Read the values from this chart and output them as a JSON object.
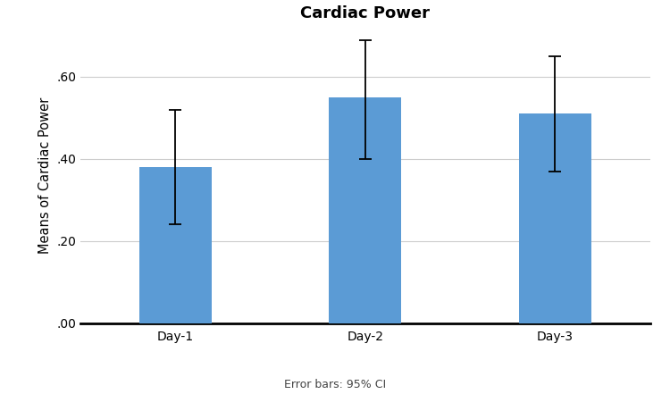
{
  "title": "Cardiac Power",
  "ylabel": "Means of Cardiac Power",
  "xlabel": "",
  "categories": [
    "Day-1",
    "Day-2",
    "Day-3"
  ],
  "values": [
    0.38,
    0.55,
    0.51
  ],
  "ci_lower": [
    0.24,
    0.4,
    0.37
  ],
  "ci_upper": [
    0.52,
    0.69,
    0.65
  ],
  "bar_color": "#5B9BD5",
  "bar_edgecolor": "none",
  "ylim": [
    0.0,
    0.72
  ],
  "yticks": [
    0.0,
    0.2,
    0.4,
    0.6
  ],
  "ytick_labels": [
    ".00",
    ".20",
    ".40",
    ".60"
  ],
  "background_color": "#ffffff",
  "grid_color": "#cccccc",
  "title_fontsize": 13,
  "axis_label_fontsize": 10.5,
  "tick_fontsize": 10,
  "footer_text": "Error bars: 95% CI",
  "footer_fontsize": 9,
  "bar_width": 0.38
}
